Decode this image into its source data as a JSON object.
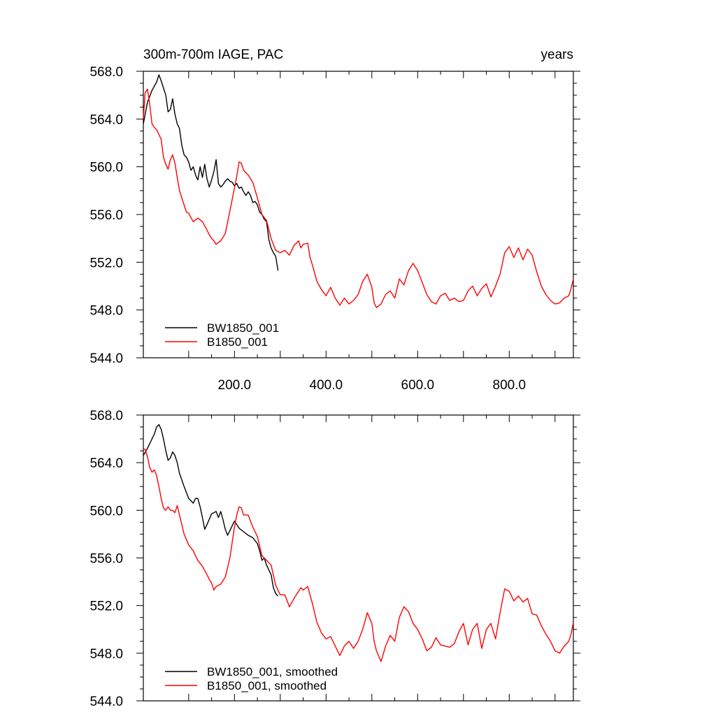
{
  "figure": {
    "title_left": "300m-700m IAGE, PAC",
    "title_right": "years"
  },
  "colors": {
    "black_series": "#000000",
    "red_series": "#ff0000"
  },
  "chart_data": [
    {
      "type": "line",
      "title": "300m-700m IAGE, PAC",
      "xunits_label": "years",
      "xlim": [
        1,
        940
      ],
      "ylim": [
        544,
        568
      ],
      "xticks": [
        200,
        400,
        600,
        800
      ],
      "xtick_labels": [
        "200.0",
        "400.0",
        "600.0",
        "800.0"
      ],
      "yticks": [
        544,
        548,
        552,
        556,
        560,
        564,
        568
      ],
      "ytick_labels": [
        "544.0",
        "548.0",
        "552.0",
        "556.0",
        "560.0",
        "564.0",
        "568.0"
      ],
      "grid": false,
      "legend_position": "bottom-left",
      "series": [
        {
          "name": "BW1850_001",
          "color": "#000000",
          "x": [
            1,
            10,
            20,
            30,
            35,
            40,
            45,
            50,
            55,
            60,
            65,
            70,
            75,
            80,
            85,
            90,
            95,
            100,
            105,
            110,
            115,
            120,
            125,
            130,
            135,
            140,
            145,
            150,
            155,
            160,
            165,
            170,
            175,
            180,
            185,
            190,
            195,
            200,
            205,
            210,
            215,
            220,
            225,
            230,
            235,
            240,
            245,
            250,
            255,
            260,
            265,
            270,
            275,
            280,
            285,
            290,
            295
          ],
          "y": [
            563.6,
            565.4,
            566.4,
            567.1,
            567.7,
            567.2,
            566.6,
            566.0,
            564.6,
            564.8,
            565.7,
            564.4,
            563.6,
            563.2,
            561.8,
            561.0,
            560.8,
            560.4,
            559.7,
            560.0,
            559.3,
            558.9,
            560.0,
            559.1,
            560.2,
            559.0,
            558.3,
            558.9,
            559.6,
            560.6,
            558.6,
            558.3,
            558.5,
            558.8,
            559.0,
            558.8,
            558.7,
            558.4,
            558.6,
            558.2,
            558.3,
            557.9,
            557.6,
            557.9,
            557.6,
            557.0,
            557.1,
            556.8,
            556.2,
            556.0,
            555.6,
            555.4,
            553.9,
            553.2,
            552.8,
            552.5,
            551.3
          ]
        },
        {
          "name": "B1850_001",
          "color": "#ff0000",
          "x": [
            1,
            5,
            10,
            15,
            20,
            25,
            30,
            35,
            40,
            45,
            50,
            55,
            60,
            65,
            70,
            75,
            80,
            85,
            90,
            95,
            100,
            110,
            120,
            130,
            140,
            145,
            150,
            155,
            160,
            170,
            180,
            190,
            200,
            205,
            210,
            215,
            220,
            230,
            240,
            250,
            260,
            270,
            280,
            290,
            300,
            310,
            320,
            330,
            340,
            345,
            350,
            360,
            365,
            370,
            380,
            390,
            400,
            410,
            420,
            430,
            440,
            450,
            460,
            470,
            480,
            490,
            500,
            505,
            510,
            520,
            530,
            540,
            550,
            560,
            570,
            580,
            590,
            600,
            610,
            620,
            630,
            640,
            650,
            660,
            670,
            680,
            690,
            700,
            710,
            720,
            730,
            740,
            750,
            760,
            770,
            780,
            790,
            800,
            810,
            820,
            830,
            840,
            850,
            860,
            870,
            880,
            890,
            900,
            910,
            920,
            930,
            935,
            940
          ],
          "y": [
            564.0,
            566.2,
            566.5,
            565.2,
            563.6,
            563.3,
            563.1,
            562.7,
            562.3,
            560.8,
            560.2,
            559.8,
            560.6,
            561.0,
            560.3,
            559.1,
            558.0,
            557.4,
            556.8,
            556.2,
            556.1,
            555.4,
            555.7,
            555.4,
            554.7,
            554.3,
            554.0,
            553.8,
            553.5,
            553.8,
            554.4,
            556.3,
            558.2,
            559.2,
            560.4,
            560.3,
            559.7,
            559.3,
            558.7,
            557.4,
            556.0,
            555.5,
            554.0,
            553.0,
            552.8,
            553.0,
            552.6,
            553.4,
            553.8,
            553.2,
            553.5,
            553.6,
            552.4,
            551.8,
            550.4,
            549.7,
            549.2,
            549.9,
            549.0,
            548.4,
            549.0,
            548.5,
            548.8,
            549.3,
            550.4,
            551.0,
            549.9,
            548.6,
            548.2,
            548.5,
            549.3,
            549.6,
            549.0,
            550.6,
            550.1,
            551.3,
            551.9,
            551.3,
            550.3,
            549.3,
            548.7,
            548.5,
            549.2,
            549.4,
            548.8,
            549.0,
            548.7,
            548.8,
            549.6,
            550.0,
            549.2,
            549.8,
            550.2,
            549.1,
            550.0,
            551.0,
            552.8,
            553.3,
            552.4,
            553.2,
            552.2,
            553.1,
            552.6,
            551.2,
            550.0,
            549.3,
            548.8,
            548.5,
            548.6,
            549.0,
            549.2,
            549.8,
            550.6
          ]
        }
      ]
    },
    {
      "type": "line",
      "xlim": [
        1,
        940
      ],
      "ylim": [
        544,
        568
      ],
      "yticks": [
        544,
        548,
        552,
        556,
        560,
        564,
        568
      ],
      "ytick_labels": [
        "544.0",
        "548.0",
        "552.0",
        "556.0",
        "560.0",
        "564.0",
        "568.0"
      ],
      "grid": false,
      "legend_position": "bottom-left",
      "series": [
        {
          "name": "BW1850_001, smoothed",
          "color": "#000000",
          "x": [
            1,
            10,
            20,
            25,
            30,
            35,
            40,
            45,
            50,
            55,
            60,
            65,
            70,
            75,
            80,
            90,
            100,
            110,
            115,
            120,
            125,
            130,
            135,
            140,
            150,
            160,
            165,
            170,
            175,
            180,
            185,
            190,
            200,
            210,
            220,
            230,
            240,
            250,
            255,
            260,
            265,
            270,
            280,
            285,
            290,
            295
          ],
          "y": [
            564.6,
            565.2,
            566.0,
            566.4,
            567.0,
            567.2,
            566.8,
            566.0,
            565.0,
            564.2,
            564.4,
            564.9,
            564.6,
            564.0,
            563.1,
            562.0,
            561.0,
            560.6,
            561.0,
            561.0,
            560.3,
            559.4,
            558.4,
            558.8,
            559.7,
            559.9,
            559.4,
            559.9,
            559.2,
            558.4,
            557.9,
            558.3,
            559.1,
            558.5,
            558.2,
            557.9,
            557.7,
            557.2,
            556.6,
            555.8,
            556.0,
            555.4,
            554.6,
            553.5,
            553.0,
            552.8
          ]
        },
        {
          "name": "B1850_001, smoothed",
          "color": "#ff0000",
          "x": [
            1,
            5,
            10,
            15,
            20,
            25,
            30,
            35,
            40,
            45,
            50,
            55,
            60,
            65,
            70,
            75,
            80,
            90,
            100,
            110,
            120,
            130,
            140,
            145,
            150,
            155,
            160,
            170,
            180,
            190,
            200,
            205,
            210,
            215,
            220,
            230,
            240,
            250,
            260,
            270,
            280,
            290,
            300,
            310,
            320,
            330,
            340,
            345,
            350,
            360,
            370,
            380,
            390,
            400,
            410,
            420,
            430,
            440,
            450,
            460,
            470,
            480,
            490,
            500,
            505,
            510,
            520,
            530,
            540,
            550,
            560,
            570,
            580,
            590,
            600,
            610,
            620,
            630,
            640,
            650,
            660,
            670,
            680,
            690,
            700,
            710,
            720,
            730,
            740,
            750,
            760,
            770,
            780,
            790,
            800,
            810,
            820,
            830,
            840,
            850,
            860,
            870,
            880,
            890,
            900,
            910,
            920,
            930,
            935,
            940
          ],
          "y": [
            565.2,
            565.1,
            564.5,
            563.6,
            563.2,
            563.4,
            562.9,
            562.0,
            561.0,
            560.2,
            560.0,
            560.3,
            560.0,
            560.0,
            559.8,
            560.4,
            559.6,
            558.0,
            557.1,
            556.6,
            555.8,
            555.3,
            554.6,
            554.2,
            553.9,
            553.3,
            553.6,
            553.8,
            554.4,
            556.0,
            558.6,
            559.6,
            560.3,
            560.2,
            559.6,
            559.6,
            558.6,
            557.8,
            556.2,
            555.8,
            555.4,
            553.7,
            552.9,
            552.9,
            551.9,
            552.6,
            553.2,
            553.5,
            553.3,
            553.6,
            552.2,
            550.6,
            549.7,
            549.2,
            549.4,
            548.6,
            547.8,
            548.6,
            549.0,
            548.4,
            549.0,
            550.0,
            551.4,
            550.5,
            549.0,
            548.2,
            547.3,
            548.6,
            549.5,
            549.0,
            551.0,
            551.9,
            551.5,
            550.5,
            550.0,
            549.2,
            548.2,
            548.5,
            549.3,
            548.7,
            548.6,
            548.5,
            548.8,
            549.8,
            550.5,
            548.7,
            550.0,
            550.5,
            548.4,
            550.0,
            550.5,
            549.2,
            551.4,
            553.4,
            553.2,
            552.4,
            552.8,
            552.3,
            552.6,
            551.3,
            551.2,
            550.3,
            549.6,
            549.0,
            548.2,
            548.0,
            548.6,
            549.0,
            549.6,
            550.6
          ]
        }
      ]
    }
  ]
}
